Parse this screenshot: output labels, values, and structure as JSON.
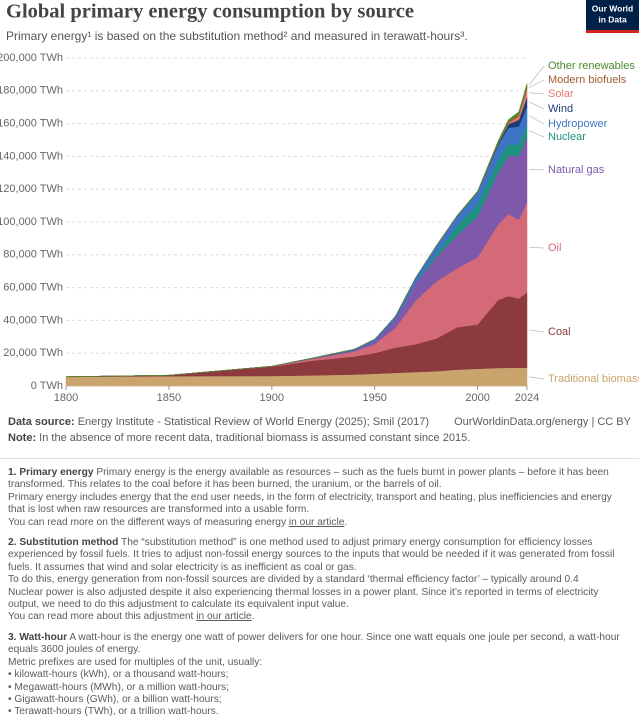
{
  "chart_data": {
    "type": "stacked-area",
    "title": "Global primary energy consumption by source",
    "subtitle": "Primary energy¹ is based on the substitution method² and measured in terawatt-hours³.",
    "x": [
      1800,
      1850,
      1900,
      1920,
      1940,
      1950,
      1960,
      1970,
      1980,
      1990,
      2000,
      2010,
      2015,
      2020,
      2024
    ],
    "xlim": [
      1800,
      2024
    ],
    "xticks": [
      1800,
      1850,
      1900,
      1950,
      2000,
      2024
    ],
    "ylim": [
      0,
      200000
    ],
    "yticks": [
      {
        "value": 0,
        "label": "0 TWh"
      },
      {
        "value": 20000,
        "label": "20,000 TWh"
      },
      {
        "value": 40000,
        "label": "40,000 TWh"
      },
      {
        "value": 60000,
        "label": "60,000 TWh"
      },
      {
        "value": 80000,
        "label": "80,000 TWh"
      },
      {
        "value": 100000,
        "label": "100,000 TWh"
      },
      {
        "value": 120000,
        "label": "120,000 TWh"
      },
      {
        "value": 140000,
        "label": "140,000 TWh"
      },
      {
        "value": 160000,
        "label": "160,000 TWh"
      },
      {
        "value": 180000,
        "label": "180,000 TWh"
      },
      {
        "value": 200000,
        "label": "200,000 TWh"
      }
    ],
    "grid": true,
    "series": [
      {
        "name": "Traditional biomass",
        "color": "#c9a46c",
        "values": [
          5556,
          6000,
          6111,
          6500,
          7000,
          7500,
          8000,
          8500,
          9000,
          10000,
          10500,
          11000,
          11100,
          11100,
          11100
        ]
      },
      {
        "name": "Coal",
        "color": "#8c3a3e",
        "values": [
          97,
          570,
          5700,
          9000,
          11000,
          12600,
          15400,
          17000,
          20000,
          25800,
          27000,
          41500,
          43700,
          42300,
          46000
        ]
      },
      {
        "name": "Oil",
        "color": "#d46a77",
        "values": [
          0,
          0,
          180,
          1100,
          3000,
          5400,
          12000,
          26700,
          34700,
          36000,
          41000,
          46000,
          50000,
          48000,
          55000
        ]
      },
      {
        "name": "Natural gas",
        "color": "#7e58ab",
        "values": [
          0,
          0,
          60,
          300,
          800,
          2100,
          5200,
          10500,
          15000,
          20000,
          25000,
          31900,
          35700,
          38800,
          40000
        ]
      },
      {
        "name": "Nuclear",
        "color": "#1f917f",
        "values": [
          0,
          0,
          0,
          0,
          0,
          0,
          0,
          230,
          2000,
          5800,
          7300,
          7500,
          7000,
          7000,
          7200
        ]
      },
      {
        "name": "Hydropower",
        "color": "#3e74c4",
        "values": [
          0,
          0,
          0,
          200,
          600,
          900,
          1800,
          3300,
          4900,
          6000,
          7300,
          9100,
          10000,
          11000,
          11000
        ]
      },
      {
        "name": "Wind",
        "color": "#1c3d78",
        "values": [
          0,
          0,
          0,
          0,
          0,
          0,
          0,
          0,
          0,
          0,
          80,
          900,
          2200,
          4100,
          6000
        ]
      },
      {
        "name": "Solar",
        "color": "#e8786c",
        "values": [
          0,
          0,
          0,
          0,
          0,
          0,
          0,
          0,
          0,
          0,
          0,
          80,
          650,
          2200,
          5000
        ]
      },
      {
        "name": "Modern biofuels",
        "color": "#a05a2e",
        "values": [
          0,
          0,
          0,
          0,
          0,
          0,
          0,
          0,
          0,
          70,
          110,
          570,
          800,
          1000,
          1200
        ]
      },
      {
        "name": "Other renewables",
        "color": "#4b8a2c",
        "values": [
          0,
          0,
          0,
          0,
          0,
          0,
          0,
          0,
          150,
          300,
          600,
          1000,
          1300,
          1700,
          1900
        ]
      }
    ]
  },
  "logo": [
    "Our World",
    "in Data"
  ],
  "source": {
    "label": "Data source:",
    "text": "Energy Institute - Statistical Review of World Energy (2025); Smil (2017)",
    "right": "OurWorldinData.org/energy | CC BY"
  },
  "note": {
    "label": "Note:",
    "text": "In the absence of more recent data, traditional biomass is assumed constant since 2015."
  },
  "footnotes": [
    {
      "title": "1. Primary energy",
      "paragraphs": [
        "Primary energy is the energy available as resources – such as the fuels burnt in power plants – before it has been transformed. This relates to the coal before it has been burned, the uranium, or the barrels of oil.",
        "Primary energy includes energy that the end user needs, in the form of electricity, transport and heating, plus inefficiencies and energy that is lost when raw resources are transformed into a usable form."
      ],
      "more": {
        "before": "You can read more on the different ways of measuring energy",
        "link": "in our article",
        "after": "."
      }
    },
    {
      "title": "2. Substitution method",
      "paragraphs": [
        "The “substitution method” is one method used to adjust primary energy consumption for efficiency losses experienced by fossil fuels. It tries to adjust non-fossil energy sources to the inputs that would be needed if it was generated from fossil fuels. It assumes that wind and solar electricity is as inefficient as coal or gas.",
        "To do this, energy generation from non-fossil sources are divided by a standard ‘thermal efficiency factor’ – typically around 0.4",
        "Nuclear power is also adjusted despite it also experiencing thermal losses in a power plant. Since it’s reported in terms of electricity output, we need to do this adjustment to calculate its equivalent input value."
      ],
      "more": {
        "before": "You can read more about this adjustment",
        "link": "in our article",
        "after": "."
      }
    },
    {
      "title": "3. Watt-hour",
      "paragraphs": [
        "A watt-hour is the energy one watt of power delivers for one hour. Since one watt equals one joule per second, a watt-hour equals 3600 joules of energy.",
        "Metric prefixes are used for multiples of the unit, usually:"
      ],
      "bullets": [
        "kilowatt-hours (kWh), or a thousand watt-hours;",
        "Megawatt-hours (MWh), or a million watt-hours;",
        "Gigawatt-hours (GWh), or a billion watt-hours;",
        "Terawatt-hours (TWh), or a trillion watt-hours."
      ]
    }
  ]
}
